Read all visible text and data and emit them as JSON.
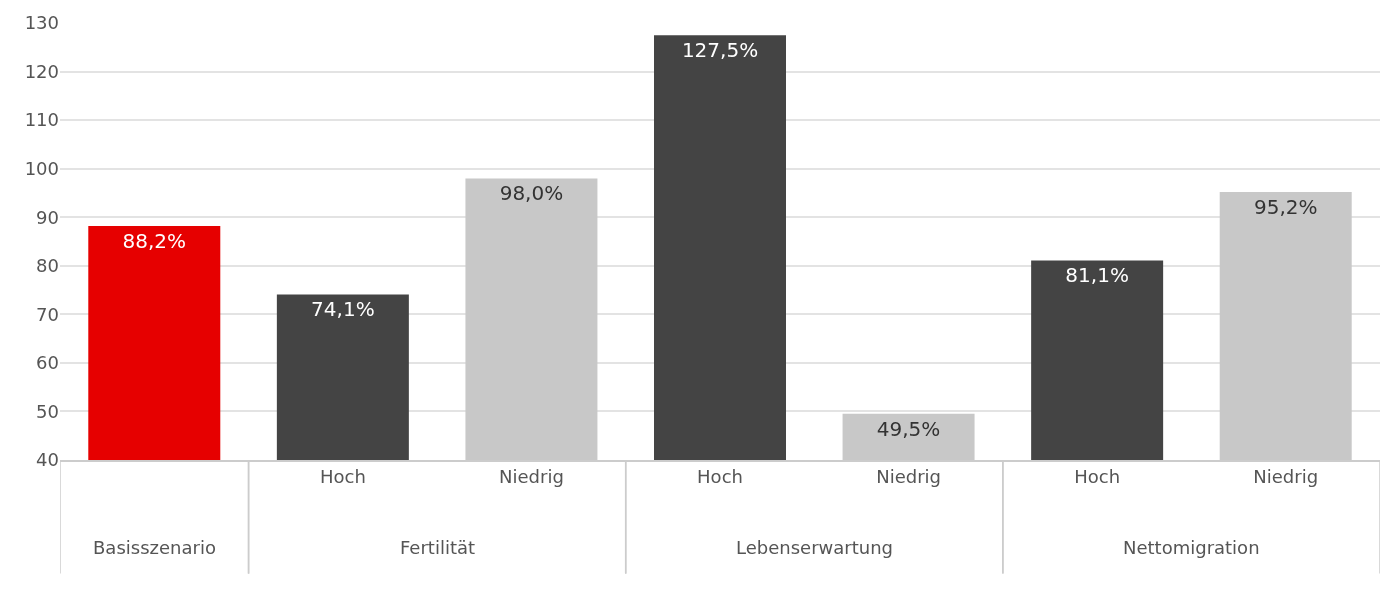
{
  "chart_data": {
    "type": "bar",
    "categories": [
      null,
      "Hoch",
      "Niedrig",
      "Hoch",
      "Niedrig",
      "Hoch",
      "Niedrig"
    ],
    "values": [
      88.2,
      74.1,
      98.0,
      127.5,
      49.5,
      81.1,
      95.2
    ],
    "colors": [
      "#e60000",
      "#444444",
      "#c8c8c8",
      "#444444",
      "#c8c8c8",
      "#444444",
      "#c8c8c8"
    ],
    "value_labels": [
      "88,2%",
      "74,1%",
      "98,0%",
      "127,5%",
      "49,5%",
      "81,1%",
      "95,2%"
    ],
    "ylim": [
      40,
      130
    ],
    "yticks": [
      40,
      50,
      60,
      70,
      80,
      90,
      100,
      110,
      120,
      130
    ],
    "grid": "y",
    "annotations": [
      "Basisszenario",
      "Fertilität",
      "Lebenserwartung",
      "Nettomigration"
    ]
  }
}
